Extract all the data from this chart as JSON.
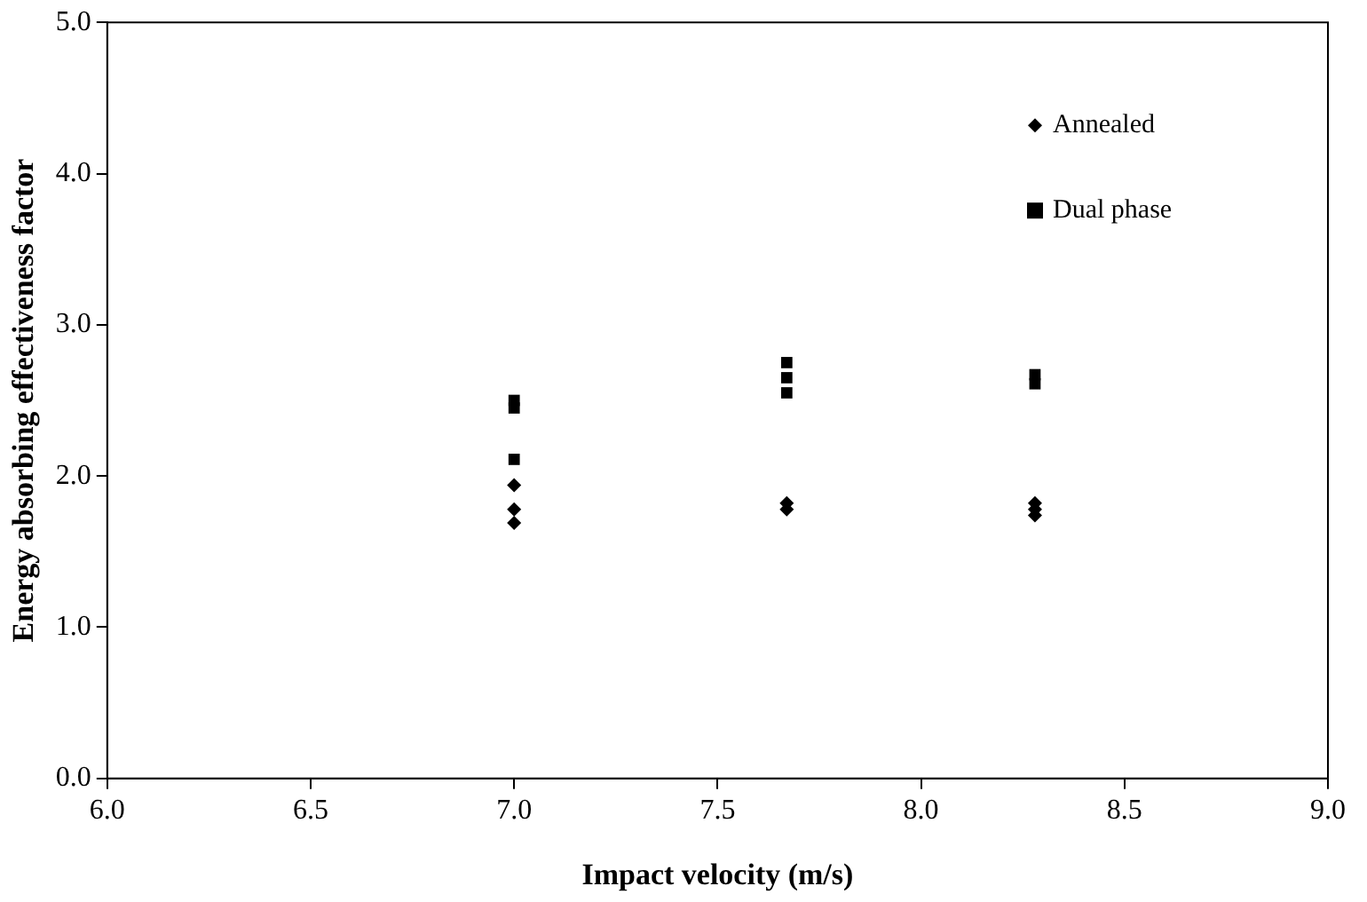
{
  "chart_data": {
    "type": "scatter",
    "xlabel": "Impact velocity (m/s)",
    "ylabel": "Energy absorbing effectiveness factor",
    "xlim": [
      6,
      9
    ],
    "xticks": [
      {
        "value": 6,
        "label": "6.0"
      },
      {
        "value": 6.5,
        "label": "6.5"
      },
      {
        "value": 7,
        "label": "7.0"
      },
      {
        "value": 7.5,
        "label": "7.5"
      },
      {
        "value": 8,
        "label": "8.0"
      },
      {
        "value": 8.5,
        "label": "8.5"
      },
      {
        "value": 9,
        "label": "9.0"
      }
    ],
    "ylim": [
      0,
      5
    ],
    "yticks": [
      {
        "value": 0,
        "label": "0.0"
      },
      {
        "value": 1,
        "label": "1.0"
      },
      {
        "value": 2,
        "label": "2.0"
      },
      {
        "value": 3,
        "label": "3.0"
      },
      {
        "value": 4,
        "label": "4.0"
      },
      {
        "value": 5,
        "label": "5.0"
      }
    ],
    "grid": false,
    "legend": "top right",
    "series": [
      {
        "name": "Annealed",
        "color": "#000000",
        "marker": "diamond",
        "x": [
          7,
          7,
          7,
          7.67,
          7.67,
          8.28,
          8.28,
          8.28
        ],
        "values": [
          1.94,
          1.78,
          1.69,
          1.82,
          1.78,
          1.82,
          1.78,
          1.74
        ]
      },
      {
        "name": "Dual phase",
        "color": "#000000",
        "marker": "square",
        "x": [
          7,
          7,
          7,
          7.67,
          7.67,
          7.67,
          8.28,
          8.28
        ],
        "values": [
          2.5,
          2.45,
          2.11,
          2.75,
          2.65,
          2.55,
          2.67,
          2.61
        ]
      }
    ]
  }
}
